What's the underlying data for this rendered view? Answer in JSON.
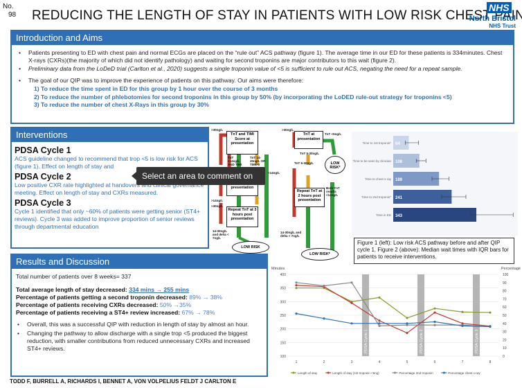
{
  "header": {
    "no_label": "No.",
    "no_value": "98",
    "title": "REDUCING THE LENGTH OF STAY IN PATIENTS WITH LOW RISK CHEST PAIN"
  },
  "logo": {
    "nhs": "NHS",
    "name": "North Bristol",
    "trust": "NHS Trust"
  },
  "intro": {
    "heading": "Introduction and Aims",
    "p1": "Patients presenting to ED with chest pain and normal ECGs are placed on the “rule out” ACS pathway (figure 1). The average  time in our ED for these patients is 334minutes. Chest X-rays  (CXRs)(the majority of which did not identify pathology) and waiting for second troponins are major contributors to this  wait (figure 2).",
    "p2": "Preliminary data from the LoDeD trial (Carlton et al., 2020) suggests a single troponin value of <5 is sufficient to rule out ACS, negating the need for a repeat sample.",
    "p3": "The goal of our QIP was to improve the experience of patients on this pathway. Our aims were therefore:",
    "aims": [
      "1) To reduce the time spent in ED for this group by 1 hour over the course of 3 months",
      "2) To reduce the number of phlebotomies for second troponins in this group by 50% (by incorporating the LoDED rule-out strategy for troponins <5)",
      "3) To reduce the number of chest X-Rays in this group by 30%"
    ]
  },
  "interventions": {
    "heading": "Interventions",
    "c1_title": "PDSA Cycle 1",
    "c1_text": "ACS guideline changed to recommend that trop <5 is low risk for ACS (figure 1). Effect on length of stay and",
    "c2_title": "PDSA Cycle 2",
    "c2_text": "Low positive CXR rate highlighted at handovers and clinical governance meeting. Effect on length of stay and  CXRs measured.",
    "c3_title": "PDSA Cycle 3",
    "c3_text": "Cycle 1 identified that only ~60% of patients were getting senior (ST4+ reviews). Cycle 3 was added to improve proportion of senior reviews through departmental education"
  },
  "tooltip": {
    "text": "Select an area to comment on"
  },
  "results": {
    "heading": "Results and Discussion",
    "total": "Total number of patients over 8 weeks= 337",
    "l1_label": "Total average length of stay decreased: ",
    "l1_value": "334 mins → 255 mins",
    "l2_label": "Percentage of patients getting a second troponin decreased: ",
    "l2_value": "89% → 38%",
    "l3_label": "Percentage of patients receiving CXRs decreased: ",
    "l3_value": "50% →35%",
    "l4_label": "Percentage of patients receiving a ST4+ review increased: ",
    "l4_value": "67% → 78%",
    "b1": "Overall, this was a successful QIP with reduction in length of stay  by almost an hour.",
    "b2": "Changing the pathway to allow discharge with a single trop <5 produced the biggest reduction, with smaller contributions from reduced unnecessary CXRs and increased ST4+ reviews."
  },
  "authors": "TODD F, BURRELL A, RICHARDS I, BENNET A, VON VOLPELIUS FELDT J CARLTON E",
  "caption": "Figure 1 (left): Low risk ACS pathway before and after QIP cycle 1.  Figure 2 (above): Median wait times with IQR bars for patients to receive interventions.",
  "flowchart": {
    "left": {
      "box1": "TnT and TIMI Score at presentation",
      "box2": "TnT at 2 hours post presentation",
      "box3": "Repeat TnT at 3 hours post presentation",
      "out": "LOW RISK"
    },
    "right": {
      "box1": "TnT at presentation",
      "low": "LOW RISK*",
      "box2": "TnT 5-30ng/L",
      "box3": "Repeat TnT at 2 hours post presentation",
      "out": "LOW RISK*"
    },
    "small": [
      ">30ng/L",
      "TnT <14ng/L AND TIMI 0",
      "TnT 14-30ng/L OR TIMI>0",
      ">30ng/L",
      "<14ng/L",
      ">14ng/L",
      ">30ng/L",
      "14-30ng/L and delta < 7ng/L",
      ">30ng/L",
      "TnT <5ng/L",
      "TnT 5-30ng/L",
      "Both TnT results <14ng/L",
      "14-30ng/L and delta < 7ng/L"
    ]
  },
  "chart_data": [
    {
      "type": "bar",
      "orientation": "horizontal",
      "categories": [
        "Time to 1st troponin*",
        "Time to be seen by clinician",
        "Time to chest x-ray",
        "Time to 2nd troponin*",
        "Time in ED"
      ],
      "values": [
        64,
        108,
        189,
        241,
        343
      ],
      "err_low": [
        50,
        95,
        160,
        200,
        320
      ],
      "err_high": [
        105,
        135,
        230,
        300,
        495
      ],
      "xlim": [
        0,
        500
      ]
    },
    {
      "type": "line",
      "x": [
        1,
        2,
        3,
        4,
        5,
        6,
        7,
        8
      ],
      "ylabel_left": "Minutes",
      "ylabel_right": "Percentage",
      "ylim_left": [
        100,
        400
      ],
      "ylim_right": [
        0,
        100
      ],
      "y_ticks_left": [
        100,
        150,
        200,
        250,
        300,
        350,
        400
      ],
      "y_ticks_right": [
        0,
        10,
        20,
        30,
        40,
        50,
        60,
        70,
        80,
        90,
        100
      ],
      "series": [
        {
          "name": "Length of stay",
          "axis": "left",
          "color": "#8a9a2a",
          "values": [
            350,
            350,
            300,
            315,
            240,
            275,
            262,
            260
          ]
        },
        {
          "name": "Length of stay (1st troponin <5ng)",
          "axis": "left",
          "color": "#c0392b",
          "values": [
            360,
            355,
            295,
            230,
            185,
            260,
            220,
            210
          ]
        },
        {
          "name": "Percentage 2nd troponin",
          "axis": "right",
          "color": "#888888",
          "values": [
            90,
            86,
            90,
            37,
            38,
            38,
            38,
            36
          ]
        },
        {
          "name": "Percentage chest x-ray",
          "axis": "right",
          "color": "#2E6FB6",
          "values": [
            52,
            46,
            40,
            40,
            40,
            42,
            37,
            36
          ]
        }
      ],
      "annotations": [
        "PDSA Cycle 1",
        "PDSA Cycle 2",
        "PDSA Cycle 3"
      ]
    }
  ]
}
